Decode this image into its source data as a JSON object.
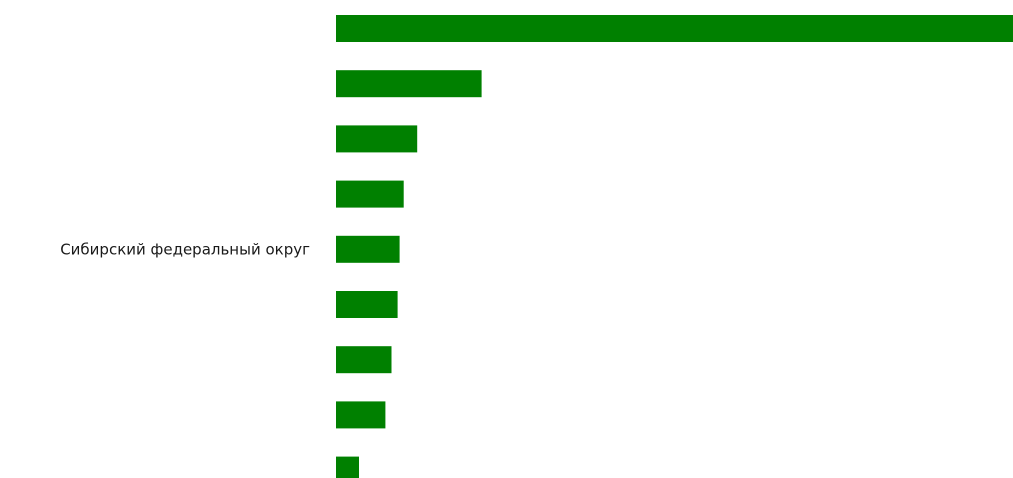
{
  "chart_data": {
    "type": "bar",
    "orientation": "horizontal",
    "categories": [
      "",
      "",
      "",
      "",
      "Сибирский федеральный округ",
      "",
      "",
      "",
      ""
    ],
    "values": [
      100,
      21.5,
      12,
      10,
      9.4,
      9.1,
      8.2,
      7.3,
      3.4
    ],
    "xlim": [
      0,
      100
    ],
    "bar_color": "#008000",
    "grid": false,
    "axes_visible": false,
    "legend": "none"
  }
}
